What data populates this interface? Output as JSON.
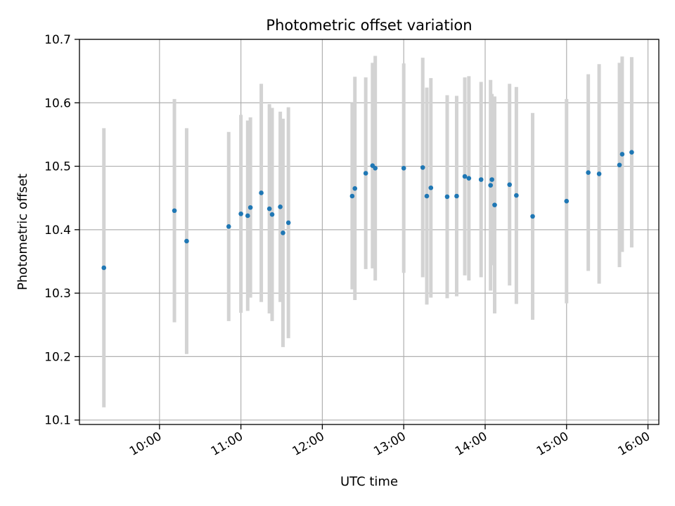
{
  "chart_data": {
    "type": "scatter",
    "title": "Photometric offset variation",
    "xlabel": "UTC time",
    "ylabel": "Photometric offset",
    "grid": true,
    "xlim": [
      "09:01",
      "16:08"
    ],
    "ylim": [
      10.093,
      10.7
    ],
    "x_ticks": [
      "10:00",
      "11:00",
      "12:00",
      "13:00",
      "14:00",
      "15:00",
      "16:00"
    ],
    "y_ticks": [
      "10.1",
      "10.2",
      "10.3",
      "10.4",
      "10.5",
      "10.6",
      "10.7"
    ],
    "colors": {
      "marker": "#1f77b4",
      "errorbar": "#d3d3d3",
      "grid": "#b0b0b0"
    },
    "series": [
      {
        "points": [
          {
            "x": "09:19",
            "y": 10.34,
            "err": 0.22
          },
          {
            "x": "10:11",
            "y": 10.43,
            "err": 0.176
          },
          {
            "x": "10:20",
            "y": 10.382,
            "err": 0.178
          },
          {
            "x": "10:51",
            "y": 10.405,
            "err": 0.149
          },
          {
            "x": "11:00",
            "y": 10.425,
            "err": 0.156
          },
          {
            "x": "11:05",
            "y": 10.422,
            "err": 0.15
          },
          {
            "x": "11:07",
            "y": 10.435,
            "err": 0.142
          },
          {
            "x": "11:15",
            "y": 10.458,
            "err": 0.172
          },
          {
            "x": "11:21",
            "y": 10.433,
            "err": 0.165
          },
          {
            "x": "11:23",
            "y": 10.424,
            "err": 0.168
          },
          {
            "x": "11:29",
            "y": 10.436,
            "err": 0.15
          },
          {
            "x": "11:31",
            "y": 10.395,
            "err": 0.18
          },
          {
            "x": "11:35",
            "y": 10.411,
            "err": 0.182
          },
          {
            "x": "12:22",
            "y": 10.453,
            "err": 0.147
          },
          {
            "x": "12:24",
            "y": 10.465,
            "err": 0.176
          },
          {
            "x": "12:32",
            "y": 10.489,
            "err": 0.151
          },
          {
            "x": "12:37",
            "y": 10.501,
            "err": 0.162
          },
          {
            "x": "12:39",
            "y": 10.497,
            "err": 0.177
          },
          {
            "x": "13:00",
            "y": 10.497,
            "err": 0.165
          },
          {
            "x": "13:14",
            "y": 10.498,
            "err": 0.173
          },
          {
            "x": "13:17",
            "y": 10.453,
            "err": 0.171
          },
          {
            "x": "13:20",
            "y": 10.466,
            "err": 0.173
          },
          {
            "x": "13:32",
            "y": 10.452,
            "err": 0.16
          },
          {
            "x": "13:39",
            "y": 10.453,
            "err": 0.158
          },
          {
            "x": "13:45",
            "y": 10.484,
            "err": 0.156
          },
          {
            "x": "13:48",
            "y": 10.481,
            "err": 0.161
          },
          {
            "x": "13:57",
            "y": 10.479,
            "err": 0.154
          },
          {
            "x": "14:04",
            "y": 10.47,
            "err": 0.166
          },
          {
            "x": "14:05",
            "y": 10.479,
            "err": 0.135
          },
          {
            "x": "14:07",
            "y": 10.439,
            "err": 0.171
          },
          {
            "x": "14:18",
            "y": 10.471,
            "err": 0.159
          },
          {
            "x": "14:23",
            "y": 10.454,
            "err": 0.171
          },
          {
            "x": "14:35",
            "y": 10.421,
            "err": 0.163
          },
          {
            "x": "15:00",
            "y": 10.445,
            "err": 0.161
          },
          {
            "x": "15:16",
            "y": 10.49,
            "err": 0.155
          },
          {
            "x": "15:24",
            "y": 10.488,
            "err": 0.173
          },
          {
            "x": "15:39",
            "y": 10.502,
            "err": 0.161
          },
          {
            "x": "15:41",
            "y": 10.519,
            "err": 0.154
          },
          {
            "x": "15:48",
            "y": 10.522,
            "err": 0.15
          }
        ]
      }
    ]
  }
}
